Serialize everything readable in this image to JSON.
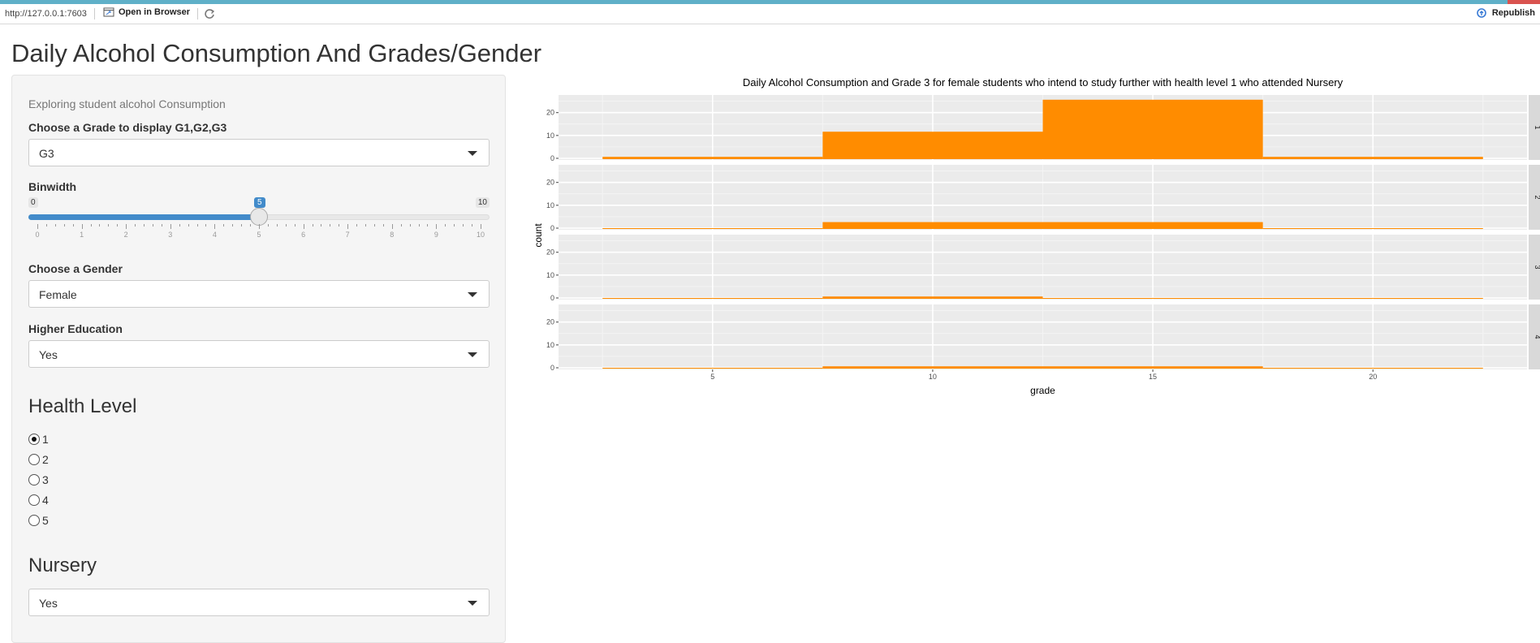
{
  "toolbar": {
    "url": "http://127.0.0.1:7603",
    "open_in_browser": "Open in Browser",
    "republish": "Republish"
  },
  "page_title": "Daily Alcohol Consumption And Grades/Gender",
  "sidebar": {
    "description": "Exploring student alcohol Consumption",
    "grade_label": "Choose a Grade to display G1,G2,G3",
    "grade_value": "G3",
    "binwidth_label": "Binwidth",
    "binwidth": {
      "min": 0,
      "max": 10,
      "value": 5,
      "ticks": [
        "0",
        "1",
        "2",
        "3",
        "4",
        "5",
        "6",
        "7",
        "8",
        "9",
        "10"
      ]
    },
    "gender_label": "Choose a Gender",
    "gender_value": "Female",
    "higher_ed_label": "Higher Education",
    "higher_ed_value": "Yes",
    "health_heading": "Health Level",
    "health_options": [
      "1",
      "2",
      "3",
      "4",
      "5"
    ],
    "health_selected": "1",
    "nursery_heading": "Nursery",
    "nursery_value": "Yes"
  },
  "colors": {
    "bar": "#ff8c00",
    "panel": "#ebebeb",
    "strip": "#d9d9d9",
    "accent": "#428bca"
  },
  "chart_data": {
    "type": "bar",
    "title": "Daily Alcohol Consumption and Grade 3 for female students who intend to study further with health level 1 who attended Nursery",
    "xlabel": "grade",
    "ylabel": "count",
    "xlim": [
      1.5,
      23.5
    ],
    "ylim": [
      0,
      27
    ],
    "x_ticks": [
      5,
      10,
      15,
      20
    ],
    "y_ticks": [
      0,
      10,
      20
    ],
    "bin_edges": [
      2.5,
      7.5,
      12.5,
      17.5,
      22.5
    ],
    "facets": [
      {
        "strip": "1",
        "counts": [
          1,
          12,
          26,
          1
        ]
      },
      {
        "strip": "2",
        "counts": [
          0,
          3,
          3,
          0
        ]
      },
      {
        "strip": "3",
        "counts": [
          0,
          1,
          0,
          0
        ]
      },
      {
        "strip": "4",
        "counts": [
          0,
          1,
          1,
          0
        ]
      }
    ],
    "grid": true
  }
}
